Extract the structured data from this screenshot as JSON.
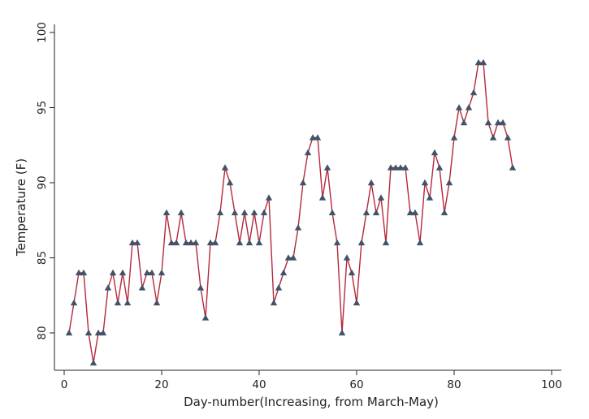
{
  "chart_data": {
    "type": "line",
    "xlabel": "Day-number(Increasing, from March-May)",
    "ylabel": "Temperature (F)",
    "xlim": [
      0,
      100
    ],
    "ylim": [
      78,
      100
    ],
    "xticks": [
      0,
      20,
      40,
      60,
      80,
      100
    ],
    "yticks": [
      80,
      85,
      90,
      95,
      100
    ],
    "grid": false,
    "legend": "none",
    "line_color": "#b5283c",
    "marker_color": "#3f5468",
    "marker": "triangle",
    "x": [
      1,
      2,
      3,
      4,
      5,
      6,
      7,
      8,
      9,
      10,
      11,
      12,
      13,
      14,
      15,
      16,
      17,
      18,
      19,
      20,
      21,
      22,
      23,
      24,
      25,
      26,
      27,
      28,
      29,
      30,
      31,
      32,
      33,
      34,
      35,
      36,
      37,
      38,
      39,
      40,
      41,
      42,
      43,
      44,
      45,
      46,
      47,
      48,
      49,
      50,
      51,
      52,
      53,
      54,
      55,
      56,
      57,
      58,
      59,
      60,
      61,
      62,
      63,
      64,
      65,
      66,
      67,
      68,
      69,
      70,
      71,
      72,
      73,
      74,
      75,
      76,
      77,
      78,
      79,
      80,
      81,
      82,
      83,
      84,
      85,
      86,
      87,
      88,
      89,
      90,
      91,
      92
    ],
    "y": [
      80,
      82,
      84,
      84,
      80,
      78,
      80,
      80,
      83,
      84,
      82,
      84,
      82,
      86,
      86,
      83,
      84,
      84,
      82,
      84,
      88,
      86,
      86,
      88,
      86,
      86,
      86,
      83,
      81,
      86,
      86,
      88,
      91,
      90,
      88,
      86,
      88,
      86,
      88,
      86,
      88,
      89,
      82,
      83,
      84,
      85,
      85,
      87,
      90,
      92,
      93,
      93,
      89,
      91,
      88,
      86,
      80,
      85,
      84,
      82,
      86,
      88,
      90,
      88,
      89,
      86,
      91,
      91,
      91,
      91,
      88,
      88,
      86,
      90,
      89,
      92,
      91,
      88,
      90,
      93,
      95,
      94,
      95,
      96,
      98,
      98,
      94,
      93,
      94,
      94,
      93,
      91
    ]
  }
}
